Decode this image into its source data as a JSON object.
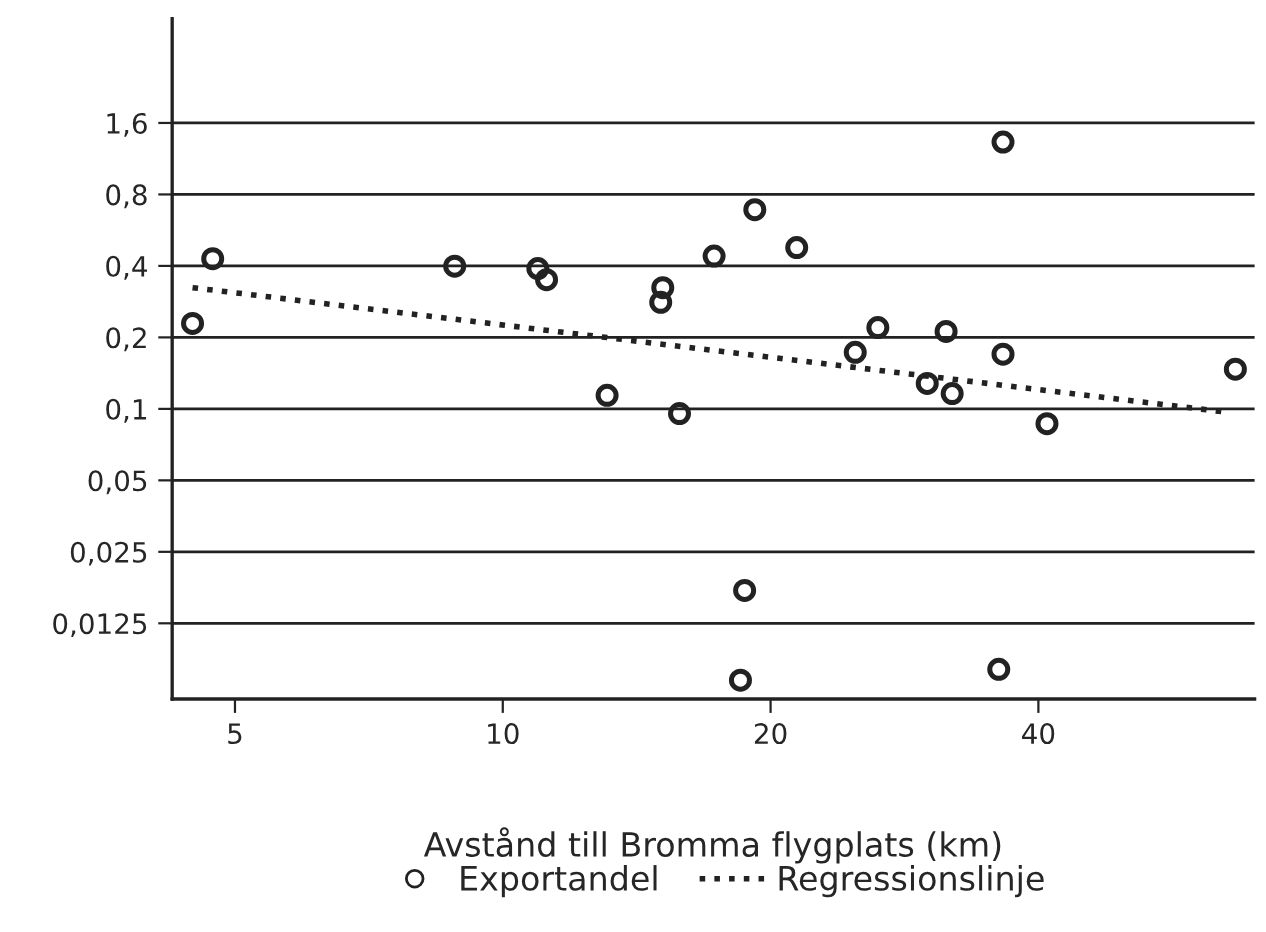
{
  "chart_data": {
    "type": "scatter",
    "xlabel": "Avstånd till Bromma flygplats (km)",
    "log": "xy",
    "grid": "y",
    "legend": "bottom",
    "xlim": [
      4.25,
      70
    ],
    "xticks": [
      5,
      10,
      20,
      40
    ],
    "ylim": [
      0.006,
      4.4
    ],
    "yticks": [
      {
        "value": 0.0125,
        "label": "0,0125"
      },
      {
        "value": 0.025,
        "label": "0,025"
      },
      {
        "value": 0.05,
        "label": "0,05"
      },
      {
        "value": 0.1,
        "label": "0,1"
      },
      {
        "value": 0.2,
        "label": "0,2"
      },
      {
        "value": 0.4,
        "label": "0,4"
      },
      {
        "value": 0.8,
        "label": "0,8"
      },
      {
        "value": 1.6,
        "label": "1,6"
      }
    ],
    "series": [
      {
        "name": "Exportandel",
        "marker": "circle",
        "color": "#222222",
        "x": [
          4.48,
          4.72,
          8.83,
          10.95,
          11.2,
          15.13,
          15.05,
          13.1,
          15.8,
          17.28,
          19.2,
          21.4,
          36.5,
          26.4,
          24.9,
          31.5,
          30.0,
          32.0,
          36.5,
          40.9,
          66.6,
          18.7,
          18.5,
          36.1
        ],
        "values": [
          0.229,
          0.429,
          0.399,
          0.39,
          0.35,
          0.324,
          0.281,
          0.114,
          0.0955,
          0.44,
          0.69,
          0.478,
          1.33,
          0.22,
          0.173,
          0.212,
          0.128,
          0.116,
          0.17,
          0.0866,
          0.147,
          0.0172,
          0.0072,
          0.008
        ]
      },
      {
        "name": "Regressionslinje",
        "type": "line",
        "line_style": "dotted",
        "color": "#222222",
        "x": [
          4.48,
          65.3
        ],
        "values": [
          0.324,
          0.0967
        ]
      }
    ]
  }
}
